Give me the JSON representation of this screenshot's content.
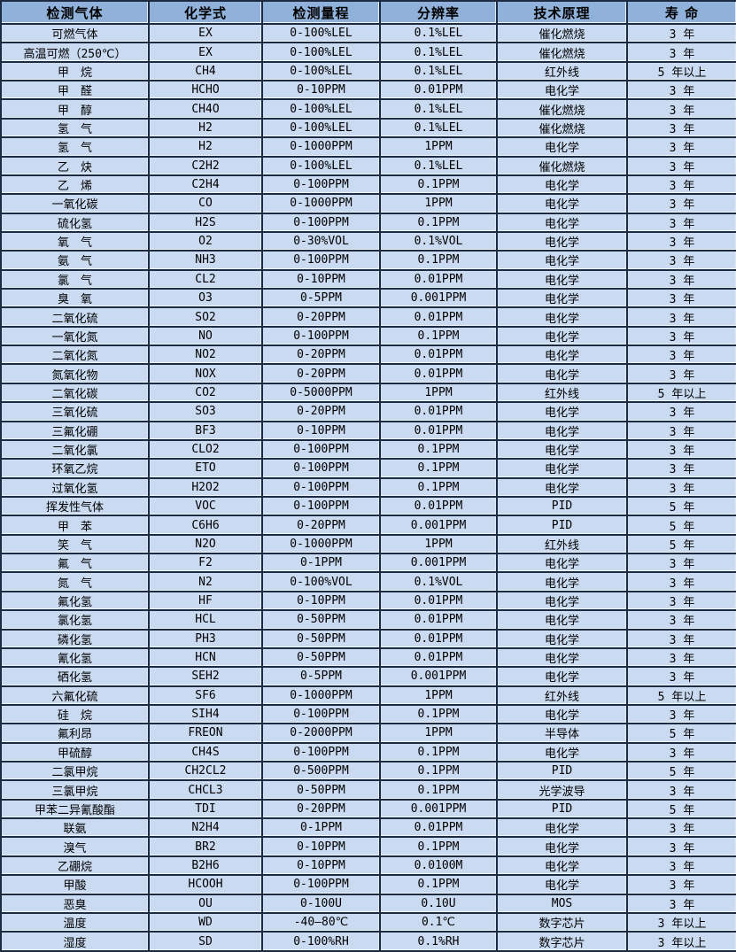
{
  "colors": {
    "header_bg": "#8fb1da",
    "row_bg": "#c9daf1",
    "border_dark": "#1c2a42",
    "border_highlight": "#eff5fc",
    "text": "#000000"
  },
  "table": {
    "columns": [
      "检测气体",
      "化学式",
      "检测量程",
      "分辨率",
      "技术原理",
      "寿 命"
    ],
    "rows": [
      [
        "可燃气体",
        "EX",
        "0-100%LEL",
        "0.1%LEL",
        "催化燃烧",
        "3 年"
      ],
      [
        "高温可燃（250℃）",
        "EX",
        "0-100%LEL",
        "0.1%LEL",
        "催化燃烧",
        "3 年"
      ],
      [
        "甲　烷",
        "CH4",
        "0-100%LEL",
        "0.1%LEL",
        "红外线",
        "5 年以上"
      ],
      [
        "甲　醛",
        "HCHO",
        "0-10PPM",
        "0.01PPM",
        "电化学",
        "3 年"
      ],
      [
        "甲　醇",
        "CH4O",
        "0-100%LEL",
        "0.1%LEL",
        "催化燃烧",
        "3 年"
      ],
      [
        "氢　气",
        "H2",
        "0-100%LEL",
        "0.1%LEL",
        "催化燃烧",
        "3 年"
      ],
      [
        "氢　气",
        "H2",
        "0-1000PPM",
        "1PPM",
        "电化学",
        "3 年"
      ],
      [
        "乙　炔",
        "C2H2",
        "0-100%LEL",
        "0.1%LEL",
        "催化燃烧",
        "3 年"
      ],
      [
        "乙　烯",
        "C2H4",
        "0-100PPM",
        "0.1PPM",
        "电化学",
        "3 年"
      ],
      [
        "一氧化碳",
        "CO",
        "0-1000PPM",
        "1PPM",
        "电化学",
        "3 年"
      ],
      [
        "硫化氢",
        "H2S",
        "0-100PPM",
        "0.1PPM",
        "电化学",
        "3 年"
      ],
      [
        "氧　气",
        "O2",
        "0-30%VOL",
        "0.1%VOL",
        "电化学",
        "3 年"
      ],
      [
        "氨　气",
        "NH3",
        "0-100PPM",
        "0.1PPM",
        "电化学",
        "3 年"
      ],
      [
        "氯　气",
        "CL2",
        "0-10PPM",
        "0.01PPM",
        "电化学",
        "3 年"
      ],
      [
        "臭　氧",
        "O3",
        "0-5PPM",
        "0.001PPM",
        "电化学",
        "3 年"
      ],
      [
        "二氧化硫",
        "SO2",
        "0-20PPM",
        "0.01PPM",
        "电化学",
        "3 年"
      ],
      [
        "一氧化氮",
        "NO",
        "0-100PPM",
        "0.1PPM",
        "电化学",
        "3 年"
      ],
      [
        "二氧化氮",
        "NO2",
        "0-20PPM",
        "0.01PPM",
        "电化学",
        "3 年"
      ],
      [
        "氮氧化物",
        "NOX",
        "0-20PPM",
        "0.01PPM",
        "电化学",
        "3 年"
      ],
      [
        "二氧化碳",
        "CO2",
        "0-5000PPM",
        "1PPM",
        "红外线",
        "5 年以上"
      ],
      [
        "三氧化硫",
        "SO3",
        "0-20PPM",
        "0.01PPM",
        "电化学",
        "3 年"
      ],
      [
        "三氟化硼",
        "BF3",
        "0-10PPM",
        "0.01PPM",
        "电化学",
        "3 年"
      ],
      [
        "二氧化氯",
        "CLO2",
        "0-100PPM",
        "0.1PPM",
        "电化学",
        "3 年"
      ],
      [
        "环氧乙烷",
        "ETO",
        "0-100PPM",
        "0.1PPM",
        "电化学",
        "3 年"
      ],
      [
        "过氧化氢",
        "H2O2",
        "0-100PPM",
        "0.1PPM",
        "电化学",
        "3 年"
      ],
      [
        "挥发性气体",
        "VOC",
        "0-100PPM",
        "0.01PPM",
        "PID",
        "5 年"
      ],
      [
        "甲　苯",
        "C6H6",
        "0-20PPM",
        "0.001PPM",
        "PID",
        "5 年"
      ],
      [
        "笑　气",
        "N2O",
        "0-1000PPM",
        "1PPM",
        "红外线",
        "5 年"
      ],
      [
        "氟　气",
        "F2",
        "0-1PPM",
        "0.001PPM",
        "电化学",
        "3 年"
      ],
      [
        "氮　气",
        "N2",
        "0-100%VOL",
        "0.1%VOL",
        "电化学",
        "3 年"
      ],
      [
        "氟化氢",
        "HF",
        "0-10PPM",
        "0.01PPM",
        "电化学",
        "3 年"
      ],
      [
        "氯化氢",
        "HCL",
        "0-50PPM",
        "0.01PPM",
        "电化学",
        "3 年"
      ],
      [
        "磷化氢",
        "PH3",
        "0-50PPM",
        "0.01PPM",
        "电化学",
        "3 年"
      ],
      [
        "氰化氢",
        "HCN",
        "0-50PPM",
        "0.01PPM",
        "电化学",
        "3 年"
      ],
      [
        "硒化氢",
        "SEH2",
        "0-5PPM",
        "0.001PPM",
        "电化学",
        "3 年"
      ],
      [
        "六氟化硫",
        "SF6",
        "0-1000PPM",
        "1PPM",
        "红外线",
        "5 年以上"
      ],
      [
        "硅　烷",
        "SIH4",
        "0-100PPM",
        "0.1PPM",
        "电化学",
        "3 年"
      ],
      [
        "氟利昂",
        "FREON",
        "0-2000PPM",
        "1PPM",
        "半导体",
        "5 年"
      ],
      [
        "甲硫醇",
        "CH4S",
        "0-100PPM",
        "0.1PPM",
        "电化学",
        "3 年"
      ],
      [
        "二氯甲烷",
        "CH2CL2",
        "0-500PPM",
        "0.1PPM",
        "PID",
        "5 年"
      ],
      [
        "三氯甲烷",
        "CHCL3",
        "0-50PPM",
        "0.1PPM",
        "光学波导",
        "3 年"
      ],
      [
        "甲苯二异氰酸酯",
        "TDI",
        "0-20PPM",
        "0.001PPM",
        "PID",
        "5 年"
      ],
      [
        "联氨",
        "N2H4",
        "0-1PPM",
        "0.01PPM",
        "电化学",
        "3 年"
      ],
      [
        "溴气",
        "BR2",
        "0-10PPM",
        "0.1PPM",
        "电化学",
        "3 年"
      ],
      [
        "乙硼烷",
        "B2H6",
        "0-10PPM",
        "0.0100M",
        "电化学",
        "3 年"
      ],
      [
        "甲酸",
        "HCOOH",
        "0-100PPM",
        "0.1PPM",
        "电化学",
        "3 年"
      ],
      [
        "恶臭",
        "OU",
        "0-100U",
        "0.10U",
        "MOS",
        "3 年"
      ],
      [
        "温度",
        "WD",
        "-40—80℃",
        "0.1℃",
        "数字芯片",
        "3 年以上"
      ],
      [
        "湿度",
        "SD",
        "0-100%RH",
        "0.1%RH",
        "数字芯片",
        "3 年以上"
      ]
    ]
  }
}
